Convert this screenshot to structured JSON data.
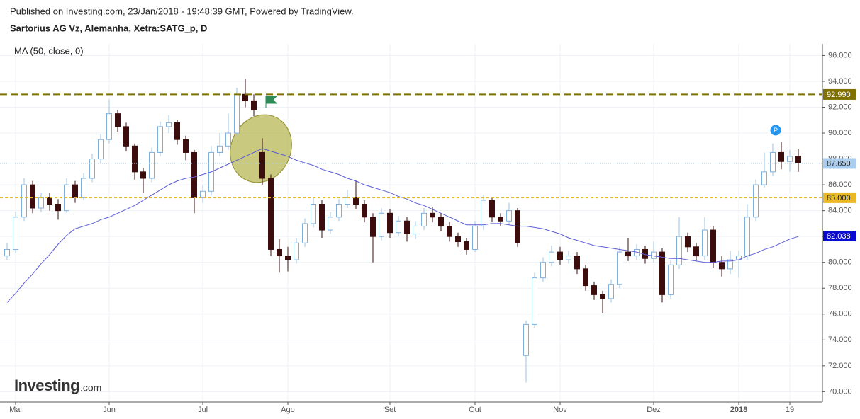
{
  "chart_data": {
    "type": "candlestick",
    "subtitle": "Published on Investing.com, 23/Jan/2018 - 19:48:39 GMT, Powered by TradingView.",
    "title": "Sartorius AG Vz, Alemanha, Xetra:SATG_p, D",
    "categories": [
      null,
      "Mai",
      null,
      null,
      null,
      null,
      null,
      null,
      null,
      null,
      null,
      null,
      "Jun",
      null,
      null,
      null,
      null,
      null,
      null,
      null,
      null,
      null,
      null,
      "Jul",
      null,
      null,
      null,
      null,
      null,
      null,
      null,
      null,
      null,
      "Ago",
      null,
      null,
      null,
      null,
      null,
      null,
      null,
      null,
      null,
      null,
      null,
      "Set",
      null,
      null,
      null,
      null,
      null,
      null,
      null,
      null,
      null,
      "Out",
      null,
      null,
      null,
      null,
      null,
      null,
      null,
      null,
      null,
      "Nov",
      null,
      null,
      null,
      null,
      null,
      null,
      null,
      null,
      null,
      null,
      "Dez",
      null,
      null,
      null,
      null,
      null,
      null,
      null,
      null,
      null,
      "2018",
      null,
      null,
      null,
      null,
      null,
      "19",
      null
    ],
    "open": [
      80.5,
      81.0,
      83.5,
      86.0,
      84.2,
      85.0,
      84.5,
      84.0,
      86.0,
      85.0,
      86.5,
      88.0,
      89.5,
      91.5,
      90.5,
      89.0,
      87.0,
      86.5,
      88.5,
      90.5,
      90.8,
      89.5,
      88.5,
      85.0,
      85.5,
      88.5,
      89.0,
      90.0,
      93.0,
      92.5,
      88.5,
      86.5,
      81.0,
      80.5,
      80.2,
      81.5,
      83.0,
      84.5,
      82.5,
      83.5,
      84.5,
      85.0,
      84.5,
      83.5,
      82.0,
      83.8,
      82.3,
      83.2,
      82.2,
      82.8,
      83.8,
      83.5,
      82.8,
      82.0,
      81.6,
      81.0,
      82.8,
      84.8,
      83.5,
      83.2,
      84.0,
      72.8,
      75.2,
      78.8,
      80.0,
      80.8,
      80.2,
      80.5,
      79.5,
      78.2,
      77.5,
      77.2,
      78.3,
      80.8,
      80.5,
      81.0,
      80.3,
      80.8,
      77.5,
      79.8,
      82.0,
      81.2,
      80.5,
      82.5,
      80.0,
      79.5,
      80.2,
      80.5,
      83.5,
      86.0,
      87.0,
      88.5,
      87.8,
      88.2
    ],
    "high": [
      81.5,
      83.9,
      86.5,
      86.3,
      85.4,
      85.4,
      84.9,
      86.5,
      86.3,
      86.9,
      88.4,
      89.9,
      92.6,
      91.8,
      90.8,
      89.2,
      87.3,
      88.9,
      90.9,
      91.4,
      91.0,
      89.8,
      88.7,
      86.0,
      89.0,
      90.0,
      91.5,
      93.5,
      94.2,
      93.0,
      89.6,
      86.8,
      81.8,
      81.2,
      81.9,
      83.4,
      85.0,
      84.8,
      83.9,
      84.9,
      85.6,
      86.3,
      84.8,
      83.8,
      84.2,
      84.1,
      83.6,
      83.5,
      83.2,
      84.2,
      84.3,
      83.8,
      83.1,
      82.3,
      81.9,
      83.2,
      85.2,
      85.0,
      83.8,
      84.6,
      84.2,
      75.5,
      79.2,
      80.4,
      81.3,
      81.2,
      80.9,
      80.8,
      79.8,
      78.5,
      77.8,
      78.7,
      81.2,
      81.9,
      81.4,
      81.3,
      81.6,
      81.1,
      80.2,
      83.5,
      82.3,
      81.5,
      83.5,
      82.8,
      80.5,
      80.9,
      80.9,
      84.5,
      86.4,
      88.5,
      89.2,
      89.3,
      88.7,
      88.8
    ],
    "low": [
      80.2,
      80.7,
      83.2,
      83.8,
      83.9,
      84.0,
      83.3,
      83.8,
      84.6,
      84.8,
      86.2,
      87.7,
      89.2,
      90.1,
      88.6,
      86.4,
      85.4,
      86.2,
      88.2,
      90.0,
      89.1,
      87.9,
      83.8,
      84.6,
      85.2,
      88.2,
      88.7,
      89.8,
      92.0,
      91.3,
      86.0,
      80.5,
      79.2,
      79.3,
      79.9,
      81.2,
      82.7,
      81.9,
      82.2,
      83.2,
      84.2,
      84.1,
      83.1,
      80.0,
      81.7,
      81.9,
      82.0,
      81.6,
      81.8,
      82.5,
      83.1,
      82.4,
      81.6,
      81.2,
      80.6,
      80.8,
      82.5,
      83.1,
      82.8,
      82.9,
      81.2,
      70.7,
      74.9,
      78.5,
      79.7,
      79.8,
      79.9,
      79.1,
      77.8,
      77.1,
      76.1,
      76.9,
      78.0,
      80.1,
      80.2,
      79.9,
      80.0,
      76.9,
      77.2,
      79.5,
      80.8,
      80.1,
      80.2,
      79.6,
      78.9,
      79.1,
      78.8,
      80.2,
      83.2,
      85.8,
      86.7,
      87.2,
      87.0,
      87.0
    ],
    "close": [
      81.0,
      83.5,
      86.0,
      84.2,
      85.0,
      84.5,
      84.0,
      86.0,
      85.0,
      86.5,
      88.0,
      89.5,
      91.5,
      90.5,
      89.0,
      87.0,
      86.5,
      88.5,
      90.5,
      90.8,
      89.5,
      88.5,
      85.0,
      85.5,
      88.5,
      89.0,
      90.0,
      93.0,
      92.5,
      91.8,
      86.5,
      81.0,
      80.5,
      80.2,
      81.5,
      83.0,
      84.5,
      82.5,
      83.5,
      84.5,
      85.0,
      84.5,
      83.5,
      82.0,
      83.8,
      82.3,
      83.2,
      82.2,
      82.8,
      83.8,
      83.5,
      82.8,
      82.0,
      81.6,
      81.0,
      82.8,
      84.8,
      83.5,
      83.2,
      84.0,
      81.5,
      75.2,
      78.8,
      80.0,
      80.8,
      80.2,
      80.5,
      79.5,
      78.2,
      77.5,
      77.2,
      78.3,
      80.8,
      80.5,
      81.0,
      80.3,
      80.8,
      77.5,
      79.8,
      82.0,
      81.2,
      80.5,
      82.5,
      80.0,
      79.5,
      80.2,
      80.5,
      83.5,
      86.0,
      87.0,
      88.5,
      87.8,
      88.2,
      87.7
    ],
    "up_color": "#9cc3e4",
    "down_color": "#3b0d0d",
    "ma": {
      "name": "MA (50, close, 0)",
      "color": "#5b5bd6",
      "values": [
        76.9,
        77.6,
        78.4,
        79.1,
        79.9,
        80.6,
        81.4,
        82.1,
        82.6,
        82.8,
        83.0,
        83.3,
        83.5,
        83.8,
        84.1,
        84.4,
        84.8,
        85.2,
        85.6,
        86.0,
        86.3,
        86.5,
        86.6,
        86.8,
        87.0,
        87.3,
        87.6,
        87.9,
        88.2,
        88.5,
        88.8,
        88.6,
        88.4,
        88.2,
        87.9,
        87.7,
        87.5,
        87.2,
        87.0,
        86.8,
        86.5,
        86.3,
        86.0,
        85.8,
        85.6,
        85.4,
        85.1,
        84.9,
        84.6,
        84.4,
        84.1,
        83.8,
        83.5,
        83.2,
        82.9,
        82.9,
        82.9,
        83.0,
        83.0,
        82.9,
        82.8,
        82.8,
        82.7,
        82.6,
        82.4,
        82.2,
        81.9,
        81.7,
        81.5,
        81.3,
        81.2,
        81.1,
        81.0,
        80.9,
        80.8,
        80.6,
        80.5,
        80.4,
        80.3,
        80.3,
        80.2,
        80.1,
        80.0,
        80.0,
        80.1,
        80.1,
        80.2,
        80.5,
        80.7,
        81.0,
        81.2,
        81.5,
        81.8,
        82.0
      ]
    },
    "price_lines": [
      {
        "value": 92.99,
        "label": "92.990",
        "color": "#7f7000",
        "text_color": "#ffffff",
        "style": "dashed"
      },
      {
        "value": 87.65,
        "label": "87.650",
        "color": "#a9cdee",
        "text_color": "#222222",
        "style": "dotted"
      },
      {
        "value": 85.0,
        "label": "85.000",
        "color": "#e8b923",
        "text_color": "#222222",
        "style": "dashed"
      },
      {
        "value": 82.038,
        "label": "82.038",
        "color": "#0a0ad0",
        "text_color": "#ffffff",
        "style": "none"
      }
    ],
    "ylim": [
      69.2,
      96.9
    ],
    "yticks": [
      {
        "value": 70,
        "label": "70.000"
      },
      {
        "value": 72,
        "label": "72.000"
      },
      {
        "value": 74,
        "label": "74.000"
      },
      {
        "value": 76,
        "label": "76.000"
      },
      {
        "value": 78,
        "label": "78.000"
      },
      {
        "value": 80,
        "label": "80.000"
      },
      {
        "value": 82,
        "label": "82.000"
      },
      {
        "value": 84,
        "label": "84.000"
      },
      {
        "value": 86,
        "label": "86.000"
      },
      {
        "value": 88,
        "label": "88.000"
      },
      {
        "value": 90,
        "label": "90.000"
      },
      {
        "value": 92,
        "label": "92.000"
      },
      {
        "value": 94,
        "label": "94.000"
      },
      {
        "value": 96,
        "label": "96.000"
      }
    ],
    "grid": true,
    "marker_label": "P",
    "watermark": "Investing",
    "watermark_suffix": ".com"
  }
}
